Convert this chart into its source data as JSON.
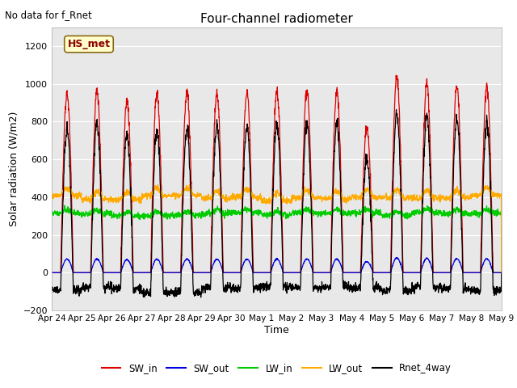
{
  "title": "Four-channel radiometer",
  "subtitle": "No data for f_Rnet",
  "ylabel": "Solar radiation (W/m2)",
  "xlabel": "Time",
  "ylim": [
    -200,
    1300
  ],
  "yticks": [
    -200,
    0,
    200,
    400,
    600,
    800,
    1000,
    1200
  ],
  "annotation": "HS_met",
  "fig_bg": "#c8c8c8",
  "plot_bg": "#e8e8e8",
  "legend": [
    "SW_in",
    "SW_out",
    "LW_in",
    "LW_out",
    "Rnet_4way"
  ],
  "colors": {
    "SW_in": "#dd0000",
    "SW_out": "#0000dd",
    "LW_in": "#00cc00",
    "LW_out": "#ffaa00",
    "Rnet_4way": "#000000"
  },
  "x_tick_labels": [
    "Apr 24",
    "Apr 25",
    "Apr 26",
    "Apr 27",
    "Apr 28",
    "Apr 29",
    "Apr 30",
    "May 1",
    "May 2",
    "May 3",
    "May 4",
    "May 5",
    "May 6",
    "May 7",
    "May 8",
    "May 9"
  ],
  "num_days": 15,
  "points_per_day": 144
}
